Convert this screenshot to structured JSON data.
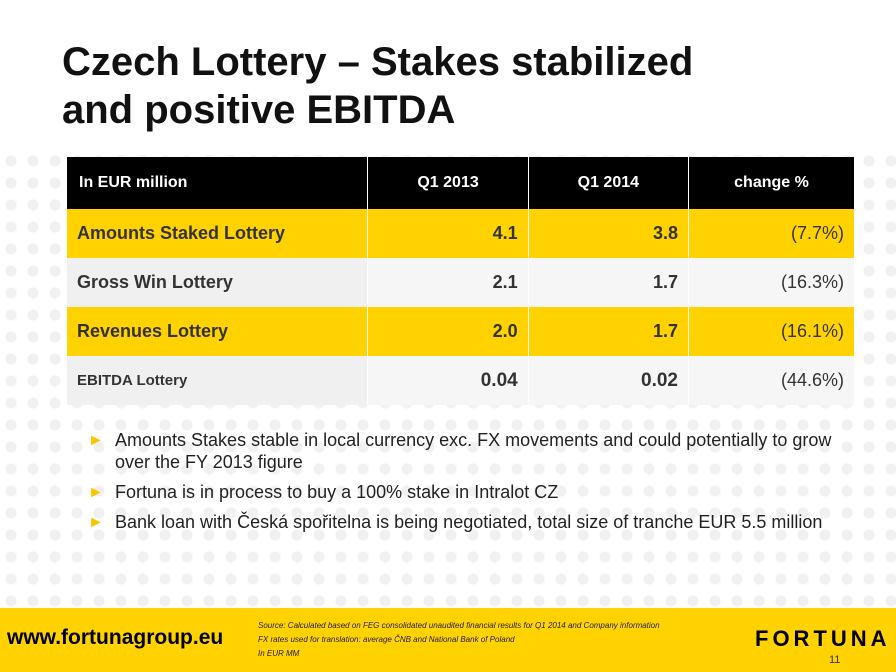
{
  "title": {
    "line1": "Czech Lottery – Stakes stabilized",
    "line2": "and positive EBITDA"
  },
  "table": {
    "headers": [
      "In EUR million",
      "Q1 2013",
      "Q1 2014",
      "change %"
    ],
    "rows": [
      {
        "label": "Amounts Staked Lottery",
        "q1_2013": "4.1",
        "q1_2014": "3.8",
        "change": "(7.7%)"
      },
      {
        "label": "Gross Win Lottery",
        "q1_2013": "2.1",
        "q1_2014": "1.7",
        "change": "(16.3%)"
      },
      {
        "label": "Revenues Lottery",
        "q1_2013": "2.0",
        "q1_2014": "1.7",
        "change": "(16.1%)"
      },
      {
        "label": "EBITDA Lottery",
        "q1_2013": "0.04",
        "q1_2014": "0.02",
        "change": "(44.6%)"
      }
    ]
  },
  "bullets": [
    "Amounts Stakes stable in local currency exc. FX movements and could potentially to grow over the FY 2013 figure",
    "Fortuna is in process to buy a 100% stake in Intralot CZ",
    "Bank loan with Česká spořitelna is being negotiated, total size of tranche EUR 5.5 million"
  ],
  "footer": {
    "website": "www.fortunagroup.eu",
    "source_lines": [
      "Source: Calculated based on FEG consolidated unaudited financial results for Q1 2014 and Company information",
      "FX rates used for translation: average ČNB and National Bank of Poland",
      "In EUR MM"
    ],
    "logo": "FORTUNA",
    "page_number": "11"
  },
  "colors": {
    "accent_yellow": "#ffd200",
    "header_black": "#000000",
    "bullet_arrow": "#ffc400"
  },
  "icons": {
    "bullet": "arrow-right-icon"
  }
}
